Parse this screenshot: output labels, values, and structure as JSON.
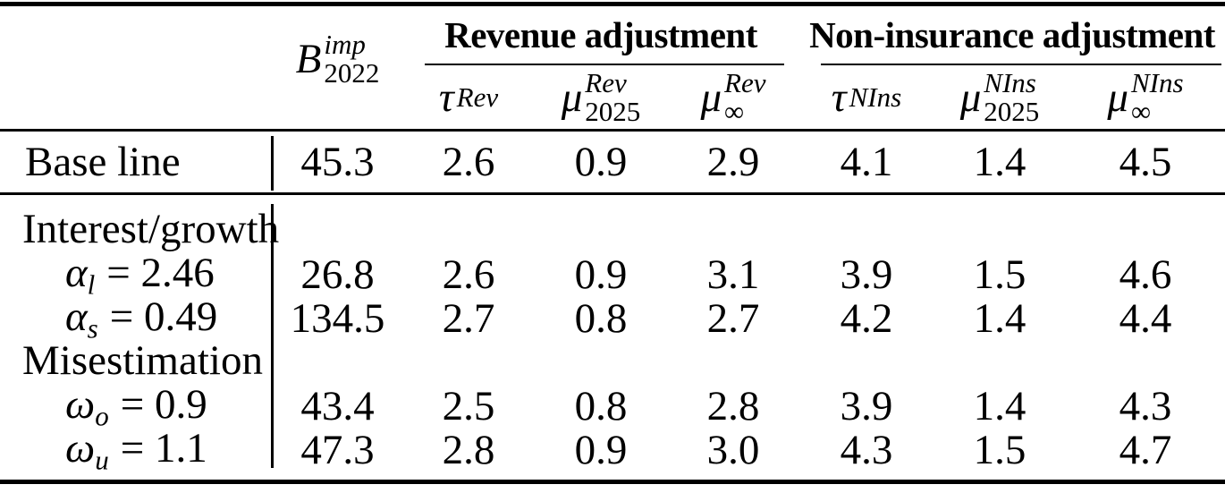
{
  "table": {
    "b_header": {
      "base": "B",
      "sup": "imp",
      "sub": "2022"
    },
    "groups": [
      {
        "title": "Revenue adjustment",
        "subcols": [
          {
            "base": "τ",
            "sup": "Rev",
            "sub": ""
          },
          {
            "base": "μ",
            "sup": "Rev",
            "sub": "2025"
          },
          {
            "base": "μ",
            "sup": "Rev",
            "sub": "∞"
          }
        ]
      },
      {
        "title": "Non-insurance adjustment",
        "subcols": [
          {
            "base": "τ",
            "sup": "NIns",
            "sub": ""
          },
          {
            "base": "μ",
            "sup": "NIns",
            "sub": "2025"
          },
          {
            "base": "μ",
            "sup": "NIns",
            "sub": "∞"
          }
        ]
      }
    ],
    "rows": {
      "baseline": {
        "label": "Base line",
        "values": [
          "45.3",
          "2.6",
          "0.9",
          "2.9",
          "4.1",
          "1.4",
          "4.5"
        ]
      },
      "section1": {
        "label": "Interest/growth"
      },
      "alpha_l": {
        "base": "α",
        "sub": "l",
        "eq": "= 2.46",
        "values": [
          "26.8",
          "2.6",
          "0.9",
          "3.1",
          "3.9",
          "1.5",
          "4.6"
        ]
      },
      "alpha_s": {
        "base": "α",
        "sub": "s",
        "eq": "= 0.49",
        "values": [
          "134.5",
          "2.7",
          "0.8",
          "2.7",
          "4.2",
          "1.4",
          "4.4"
        ]
      },
      "section2": {
        "label": "Misestimation"
      },
      "omega_o": {
        "base": "ω",
        "sub": "o",
        "eq": "= 0.9",
        "values": [
          "43.4",
          "2.5",
          "0.8",
          "2.8",
          "3.9",
          "1.4",
          "4.3"
        ]
      },
      "omega_u": {
        "base": "ω",
        "sub": "u",
        "eq": "= 1.1",
        "values": [
          "47.3",
          "2.8",
          "0.9",
          "3.0",
          "4.3",
          "1.5",
          "4.7"
        ]
      }
    },
    "ink_color": "#000000",
    "background_color": "#ffffff"
  }
}
